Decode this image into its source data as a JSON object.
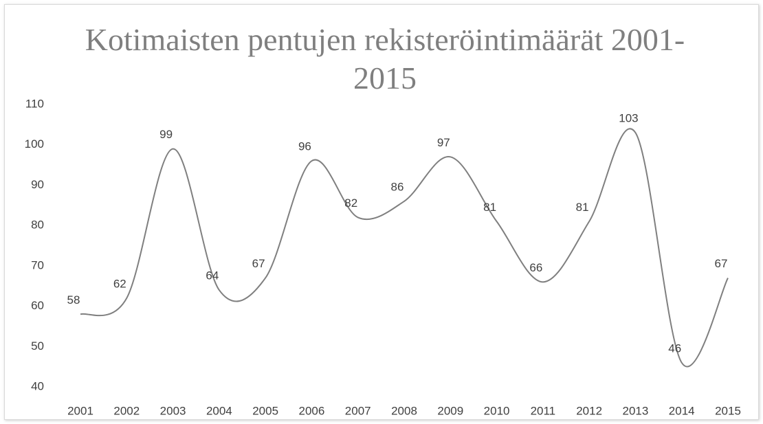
{
  "chart_data": {
    "type": "line",
    "title": "Kotimaisten pentujen rekisteröintimäärät 2001-2015",
    "categories": [
      "2001",
      "2002",
      "2003",
      "2004",
      "2005",
      "2006",
      "2007",
      "2008",
      "2009",
      "2010",
      "2011",
      "2012",
      "2013",
      "2014",
      "2015"
    ],
    "values": [
      58,
      62,
      99,
      64,
      67,
      96,
      82,
      86,
      97,
      81,
      66,
      81,
      103,
      46,
      67
    ],
    "color": "#7f7f7f",
    "smooth": true,
    "data_labels": true,
    "ylim": [
      40,
      110
    ],
    "yticks": [
      40,
      50,
      60,
      70,
      80,
      90,
      100,
      110
    ],
    "grid": false
  }
}
